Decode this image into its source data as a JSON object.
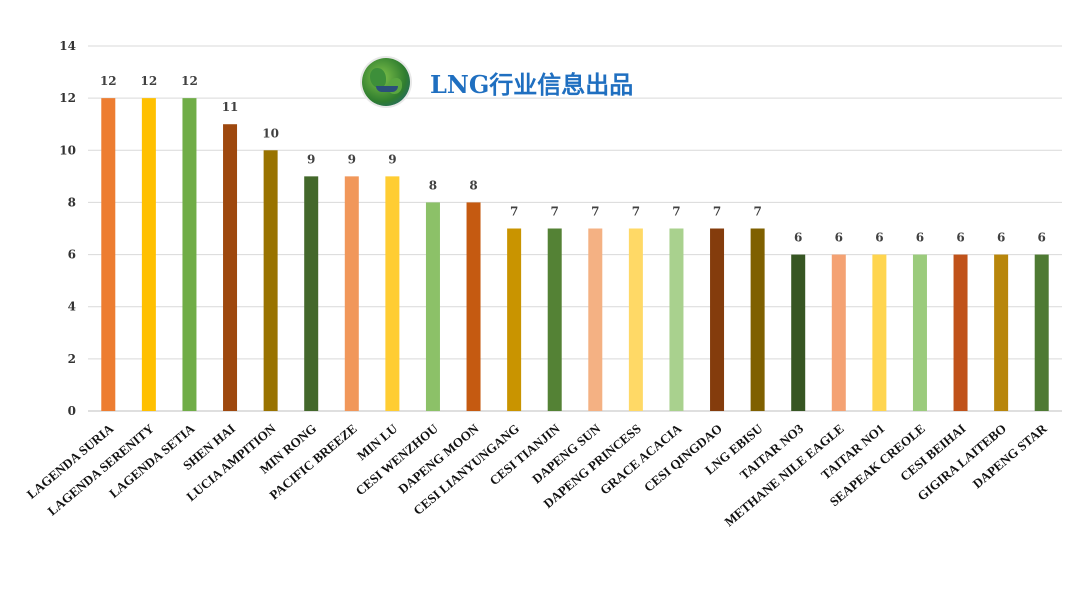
{
  "header": {
    "title": "LNG行业信息出品",
    "logo": "globe-logo"
  },
  "chart_data": {
    "type": "bar",
    "title": "",
    "xlabel": "",
    "ylabel": "",
    "ylim": [
      0,
      14
    ],
    "yticks": [
      0,
      2,
      4,
      6,
      8,
      10,
      12,
      14
    ],
    "grid": true,
    "categories": [
      "LAGENDA SURIA",
      "LAGENDA SERENITY",
      "LAGENDA SETIA",
      "SHEN HAI",
      "LUCIA AMPITION",
      "MIN RONG",
      "PACIFIC BREEZE",
      "MIN LU",
      "CESI WENZHOU",
      "DAPENG MOON",
      "CESI LIANYUNGANG",
      "CESI TIANJIN",
      "DAPENG SUN",
      "DAPENG PRINCESS",
      "GRACE ACACIA",
      "CESI QINGDAO",
      "LNG EBISU",
      "TAITAR NO3",
      "METHANE NILE EAGLE",
      "TAITAR NO1",
      "SEAPEAK CREOLE",
      "CESI BEIHAI",
      "GIGIRA LAITEBO",
      "DAPENG STAR"
    ],
    "values": [
      12,
      12,
      12,
      11,
      10,
      9,
      9,
      9,
      8,
      8,
      7,
      7,
      7,
      7,
      7,
      7,
      7,
      6,
      6,
      6,
      6,
      6,
      6,
      6
    ],
    "colors": [
      "#ED7D31",
      "#FFC000",
      "#70AD47",
      "#9E480E",
      "#997300",
      "#43682B",
      "#F1975A",
      "#FFCD33",
      "#8CC168",
      "#C55A11",
      "#C99400",
      "#548235",
      "#F4B183",
      "#FFD966",
      "#A9D18E",
      "#843C0C",
      "#7F6000",
      "#375623",
      "#F4A273",
      "#FFD54F",
      "#9BCB7C",
      "#C0521A",
      "#B8860B",
      "#4E7A33"
    ]
  }
}
